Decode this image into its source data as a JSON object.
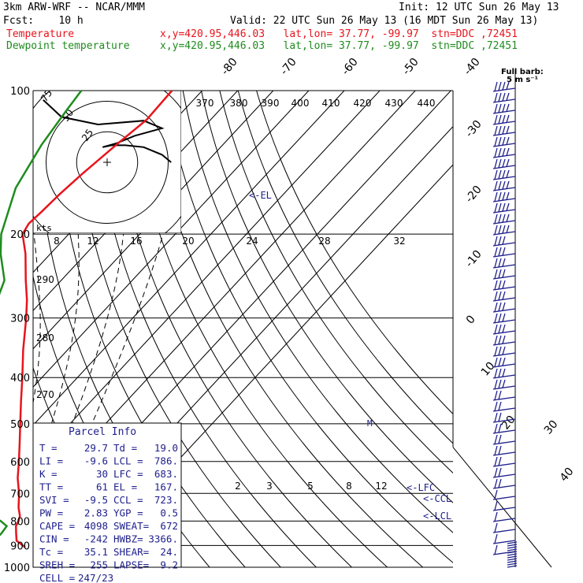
{
  "header": {
    "model": "3km ARW-WRF -- NCAR/MMM",
    "init": "Init: 12 UTC Sun 26 May 13",
    "fcst": "Fcst:    10 h",
    "valid": "Valid: 22 UTC Sun 26 May 13 (16 MDT Sun 26 May 13)",
    "temp_label": "Temperature",
    "temp_loc": "x,y=420.95,446.03   lat,lon= 37.77, -99.97  stn=DDC ,72451",
    "dew_label": "Dewpoint temperature",
    "dew_loc": "x,y=420.95,446.03   lat,lon= 37.77, -99.97  stn=DDC ,72451"
  },
  "colors": {
    "temperature": "#e8141c",
    "dewpoint": "#1e8c1e",
    "text_blue": "#1e1e8c",
    "hodograph": "#000000",
    "grid": "#000000"
  },
  "chart_data": {
    "type": "line",
    "title": "Skew-T log-P sounding",
    "y_axis": {
      "label": "pressure (hPa)",
      "scale": "log",
      "ticks": [
        100,
        200,
        300,
        400,
        500,
        600,
        700,
        800,
        900,
        1000
      ],
      "range": [
        100,
        1000
      ]
    },
    "isotherm_labels": [
      "-80",
      "-70",
      "-60",
      "-50",
      "-40",
      "-30",
      "-20",
      "-10",
      "0",
      "10",
      "20",
      "30",
      "40"
    ],
    "theta_labels": [
      "370",
      "380",
      "390",
      "400",
      "410",
      "420",
      "430",
      "440"
    ],
    "mixing_ratio_labels": [
      "2",
      "3",
      "5",
      "8",
      "12"
    ],
    "dry_adiabat_labels": [
      "290",
      "280",
      "270"
    ],
    "series": [
      {
        "name": "Temperature",
        "color": "#e8141c",
        "points": [
          [
            908,
            29.7
          ],
          [
            880,
            25.6
          ],
          [
            850,
            23.6
          ],
          [
            820,
            21.6
          ],
          [
            800,
            21.0
          ],
          [
            780,
            20.0
          ],
          [
            750,
            17.5
          ],
          [
            700,
            13.9
          ],
          [
            650,
            9.5
          ],
          [
            600,
            5.5
          ],
          [
            550,
            1.0
          ],
          [
            500,
            -4.0
          ],
          [
            450,
            -9.5
          ],
          [
            400,
            -15.5
          ],
          [
            350,
            -22.5
          ],
          [
            300,
            -30.0
          ],
          [
            275,
            -34.5
          ],
          [
            250,
            -40.0
          ],
          [
            220,
            -47.0
          ],
          [
            200,
            -53.0
          ],
          [
            190,
            -54.0
          ],
          [
            180,
            -53.5
          ],
          [
            165,
            -53.0
          ],
          [
            150,
            -52.0
          ],
          [
            130,
            -50.0
          ],
          [
            115,
            -48.0
          ],
          [
            100,
            -48.5
          ]
        ]
      },
      {
        "name": "Dewpoint temperature",
        "color": "#1e8c1e",
        "points": [
          [
            908,
            19.0
          ],
          [
            880,
            19.2
          ],
          [
            850,
            19.4
          ],
          [
            820,
            19.0
          ],
          [
            800,
            16.0
          ],
          [
            760,
            8.0
          ],
          [
            730,
            2.0
          ],
          [
            700,
            -5.0
          ],
          [
            680,
            -7.0
          ],
          [
            650,
            -10.0
          ],
          [
            620,
            -12.0
          ],
          [
            600,
            -13.0
          ],
          [
            550,
            -16.0
          ],
          [
            500,
            -21.0
          ],
          [
            450,
            -25.0
          ],
          [
            400,
            -29.0
          ],
          [
            370,
            -31.5
          ],
          [
            340,
            -36.0
          ],
          [
            310,
            -42.0
          ],
          [
            290,
            -49.0
          ],
          [
            270,
            -43.5
          ],
          [
            250,
            -46.0
          ],
          [
            220,
            -54.0
          ],
          [
            200,
            -59.0
          ],
          [
            160,
            -67.0
          ],
          [
            130,
            -71.0
          ],
          [
            110,
            -73.0
          ],
          [
            100,
            -74.0
          ]
        ]
      }
    ],
    "levels": [
      {
        "label": "<-EL",
        "p": 167
      },
      {
        "label": "<-LFC",
        "p": 683
      },
      {
        "label": "<-CCL",
        "p": 723
      },
      {
        "label": "<-LCL",
        "p": 786
      }
    ],
    "hodograph": {
      "rings_label": [
        "25",
        "50",
        "75"
      ],
      "unit": "kts",
      "points": [
        [
          14,
          0
        ],
        [
          12,
          4
        ],
        [
          8,
          8
        ],
        [
          4,
          9
        ],
        [
          1,
          9
        ],
        [
          -1,
          8
        ],
        [
          2,
          10
        ],
        [
          6,
          14
        ],
        [
          12,
          18
        ],
        [
          8,
          22
        ],
        [
          -2,
          20
        ],
        [
          -10,
          24
        ],
        [
          -14,
          33
        ]
      ]
    },
    "wind_barbs_title": "Full barb:",
    "wind_barbs_units": "5 m s⁻¹"
  },
  "parcel_info": {
    "title": "Parcel Info",
    "rows": [
      [
        "T  =",
        "29.7",
        "Td =",
        "19.0"
      ],
      [
        "LI =",
        "-9.6",
        "LCL =",
        "786."
      ],
      [
        "K  =",
        "30",
        "LFC =",
        "683."
      ],
      [
        "TT =",
        "61",
        "EL  =",
        "167."
      ],
      [
        "SVI =",
        "-9.5",
        "CCL =",
        "723."
      ],
      [
        "PW =",
        "2.83",
        "YGP =",
        "0.5"
      ],
      [
        "CAPE =",
        "4098",
        "SWEAT=",
        "672"
      ],
      [
        "CIN =",
        "-242",
        "HWBZ=",
        "3366."
      ],
      [
        "Tc =",
        "35.1",
        "SHEAR=",
        "24."
      ],
      [
        "SREH =",
        "255",
        "LAPSE=",
        "9.2"
      ],
      [
        "CELL =",
        "247/23",
        "",
        ""
      ]
    ]
  }
}
